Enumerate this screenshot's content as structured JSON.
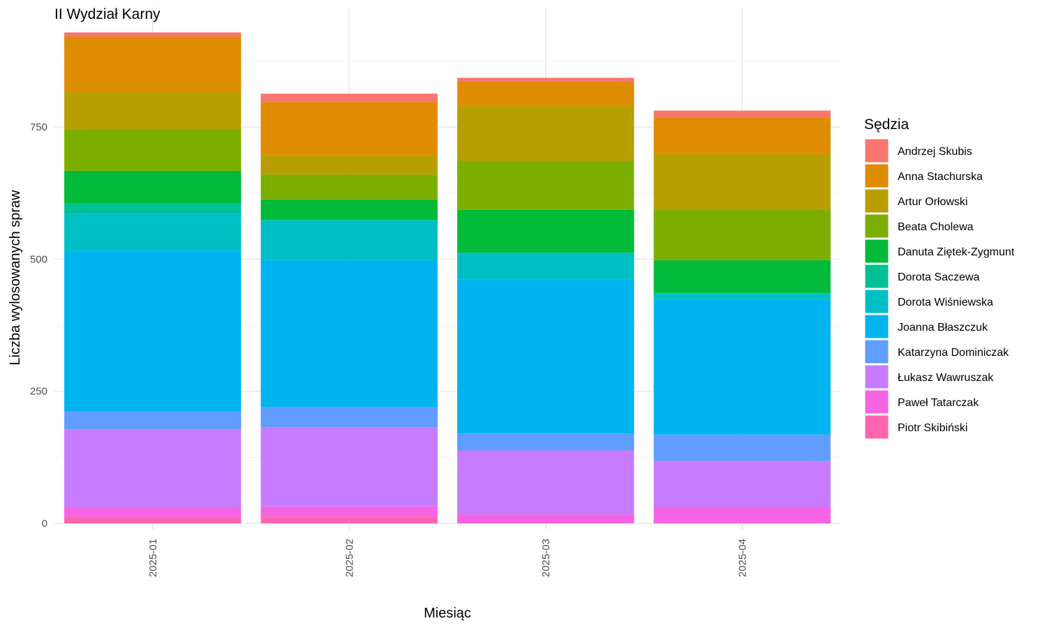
{
  "chart_data": {
    "type": "bar",
    "stacked": true,
    "title": "II Wydział Karny",
    "xlabel": "Miesiąc",
    "ylabel": "Liczba wylosowanych spraw",
    "categories": [
      "2025-01",
      "2025-02",
      "2025-03",
      "2025-04"
    ],
    "yticks": [
      0,
      250,
      500,
      750
    ],
    "ylim": [
      0,
      940
    ],
    "legend_title": "Sędzia",
    "legend_position": "right",
    "grid": true,
    "series": [
      {
        "name": "Piotr Skibiński",
        "color": "#FF65AE",
        "values": [
          12,
          13,
          0,
          0
        ]
      },
      {
        "name": "Paweł Tatarczak",
        "color": "#F564E3",
        "values": [
          17,
          19,
          17,
          31
        ]
      },
      {
        "name": "Łukasz Wawruszak",
        "color": "#C77CFF",
        "values": [
          149,
          150,
          121,
          87
        ]
      },
      {
        "name": "Katarzyna Dominiczak",
        "color": "#619CFF",
        "values": [
          34,
          38,
          32,
          50
        ]
      },
      {
        "name": "Joanna Błaszczuk",
        "color": "#00B4EF",
        "values": [
          304,
          278,
          292,
          256
        ]
      },
      {
        "name": "Dorota Wiśniewska",
        "color": "#00BFC4",
        "values": [
          70,
          76,
          50,
          12
        ]
      },
      {
        "name": "Dorota Saczewa",
        "color": "#00C094",
        "values": [
          20,
          0,
          0,
          0
        ]
      },
      {
        "name": "Danuta Ziętek-Zygmunt",
        "color": "#00BA38",
        "values": [
          61,
          39,
          81,
          62
        ]
      },
      {
        "name": "Beata Cholewa",
        "color": "#7CAE00",
        "values": [
          79,
          47,
          93,
          96
        ]
      },
      {
        "name": "Artur Orłowski",
        "color": "#B79F00",
        "values": [
          70,
          37,
          105,
          106
        ]
      },
      {
        "name": "Anna Stachurska",
        "color": "#DE8C00",
        "values": [
          105,
          100,
          45,
          68
        ]
      },
      {
        "name": "Andrzej Skubis",
        "color": "#F8766D",
        "values": [
          8,
          16,
          7,
          13
        ]
      }
    ],
    "legend_order": [
      "Andrzej Skubis",
      "Anna Stachurska",
      "Artur Orłowski",
      "Beata Cholewa",
      "Danuta Ziętek-Zygmunt",
      "Dorota Saczewa",
      "Dorota Wiśniewska",
      "Joanna Błaszczuk",
      "Katarzyna Dominiczak",
      "Łukasz Wawruszak",
      "Paweł Tatarczak",
      "Piotr Skibiński"
    ]
  }
}
